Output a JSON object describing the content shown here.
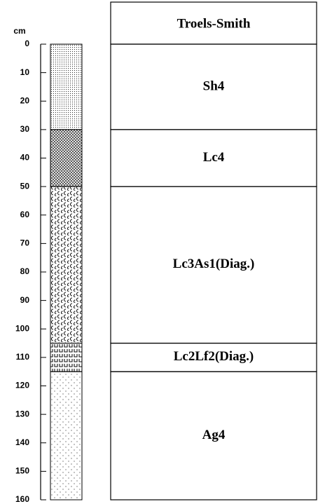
{
  "chart_data": {
    "type": "strat-column",
    "ylabel": "cm",
    "header": "Troels-Smith",
    "categories": [
      "Sh4",
      "Lc4",
      "Lc3As1(Diag.)",
      "Lc2Lf2(Diag.)",
      "Ag4"
    ],
    "values": [
      30,
      20,
      55,
      10,
      45
    ],
    "ylim": [
      0,
      160
    ],
    "yticks": [
      0,
      10,
      20,
      30,
      40,
      50,
      60,
      70,
      80,
      90,
      100,
      110,
      120,
      130,
      140,
      150,
      160
    ],
    "inverted": true
  }
}
